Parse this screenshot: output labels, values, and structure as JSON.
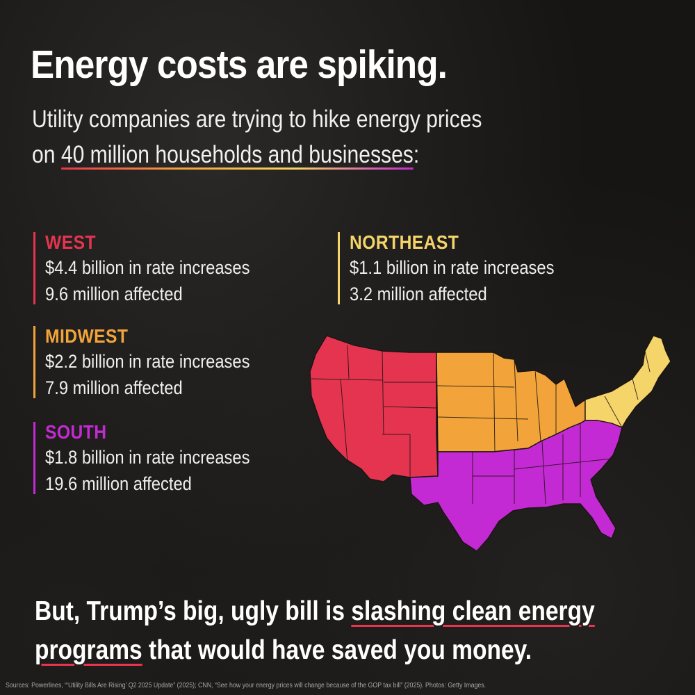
{
  "headline": "Energy costs are spiking.",
  "subhead": {
    "line1": "Utility companies are trying to hike energy prices",
    "line2_prefix": "on ",
    "line2_highlight": "40 million households and businesses",
    "line2_suffix": ":"
  },
  "regions": [
    {
      "name": "WEST",
      "rate": "$4.4 billion in rate increases",
      "affected": "9.6 million affected",
      "color": "#e5344f"
    },
    {
      "name": "NORTHEAST",
      "rate": "$1.1 billion in rate increases",
      "affected": "3.2 million affected",
      "color": "#f5d46a"
    },
    {
      "name": "MIDWEST",
      "rate": "$2.2 billion in rate increases",
      "affected": "7.9 million affected",
      "color": "#f2a43a"
    },
    {
      "name": "SOUTH",
      "rate": "$1.8 billion in rate increases",
      "affected": "19.6 million affected",
      "color": "#c42ad3"
    }
  ],
  "bottom": {
    "part1": "But, Trump’s big, ugly bill is ",
    "underline1": "slashing clean energy",
    "underline2": "programs",
    "part2": " that would have saved you money."
  },
  "sources": "Sources: Powerlines, “‘Utility Bills Are Rising’ Q2 2025 Update” (2025); CNN, “See how your energy prices will change because of the GOP tax bill” (2025). Photos: Getty Images.",
  "colors": {
    "background": "#161514",
    "west": "#e5344f",
    "midwest": "#f2a43a",
    "northeast": "#f5d46a",
    "south": "#c42ad3",
    "underline": "#e8344e"
  }
}
